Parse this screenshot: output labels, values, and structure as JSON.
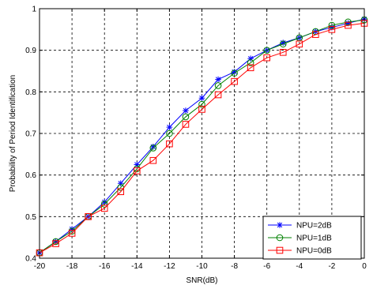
{
  "chart_data": {
    "type": "line",
    "title": "",
    "xlabel": "SNR(dB)",
    "ylabel": "Probability of Period Identification",
    "xlim": [
      -20,
      0
    ],
    "ylim": [
      0.4,
      1
    ],
    "xticks": [
      -20,
      -18,
      -16,
      -14,
      -12,
      -10,
      -8,
      -6,
      -4,
      -2,
      0
    ],
    "yticks": [
      0.4,
      0.5,
      0.6,
      0.7,
      0.8,
      0.9,
      1
    ],
    "grid": true,
    "legend_position": "bottom-right",
    "x": [
      -20,
      -19,
      -18,
      -17,
      -16,
      -15,
      -14,
      -13,
      -12,
      -11,
      -10,
      -9,
      -8,
      -7,
      -6,
      -5,
      -4,
      -3,
      -2,
      -1,
      0
    ],
    "series": [
      {
        "name": "NPU=2dB",
        "color": "#0000ff",
        "marker": "star",
        "values": [
          0.413,
          0.44,
          0.47,
          0.5,
          0.535,
          0.58,
          0.625,
          0.668,
          0.715,
          0.755,
          0.785,
          0.83,
          0.848,
          0.88,
          0.9,
          0.918,
          0.93,
          0.945,
          0.955,
          0.965,
          0.975
        ]
      },
      {
        "name": "NPU=1dB",
        "color": "#008000",
        "marker": "circle",
        "values": [
          0.413,
          0.44,
          0.465,
          0.5,
          0.53,
          0.57,
          0.615,
          0.665,
          0.7,
          0.74,
          0.77,
          0.815,
          0.845,
          0.87,
          0.9,
          0.915,
          0.93,
          0.945,
          0.96,
          0.968,
          0.973
        ]
      },
      {
        "name": "NPU=0dB",
        "color": "#ff0000",
        "marker": "square",
        "values": [
          0.413,
          0.435,
          0.46,
          0.5,
          0.52,
          0.56,
          0.61,
          0.635,
          0.675,
          0.722,
          0.758,
          0.793,
          0.825,
          0.858,
          0.882,
          0.895,
          0.915,
          0.938,
          0.95,
          0.96,
          0.965
        ]
      }
    ]
  }
}
